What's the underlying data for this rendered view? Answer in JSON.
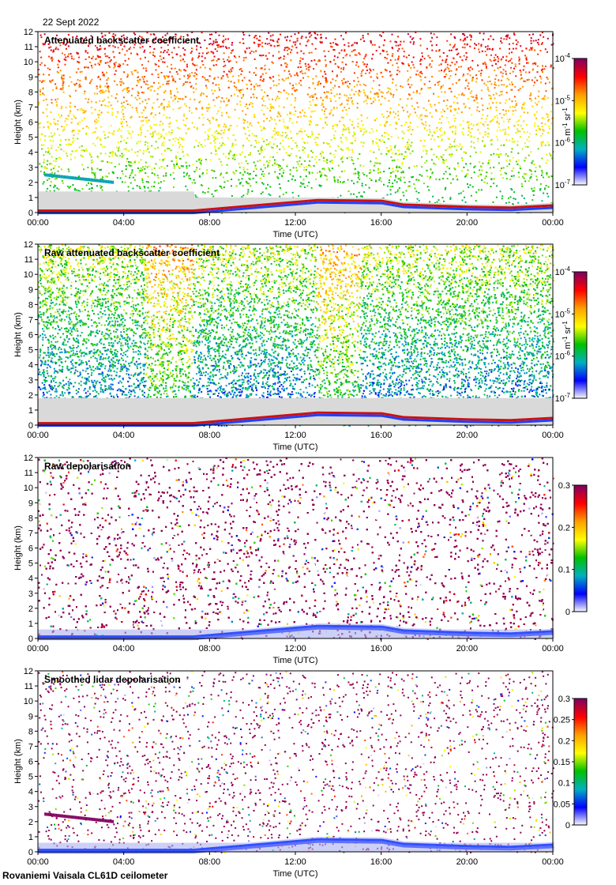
{
  "date": "22 Sept 2022",
  "footer": "Rovaniemi Vaisala CL61D ceilometer",
  "colors": {
    "background_low": "#d9d9d9",
    "scale": [
      "#ffffff",
      "#0000ff",
      "#00b0c0",
      "#00c000",
      "#ffff00",
      "#ffa000",
      "#ff0000",
      "#800060"
    ]
  },
  "chart_data": [
    {
      "type": "heatmap",
      "title": "Attenuated backscatter coefficient",
      "xlabel": "Time (UTC)",
      "ylabel": "Height (km)",
      "x_ticks": [
        "00:00",
        "04:00",
        "08:00",
        "12:00",
        "16:00",
        "20:00",
        "00:00"
      ],
      "xlim": [
        0,
        24
      ],
      "ylim": [
        0,
        12
      ],
      "y_ticks": [
        "0",
        "1",
        "2",
        "3",
        "4",
        "5",
        "6",
        "7",
        "8",
        "9",
        "10",
        "11",
        "12"
      ],
      "colorbar": {
        "scale": "log",
        "range": [
          1e-07,
          0.0001
        ],
        "unit_base": "m",
        "unit_exp": "-1",
        "unit_base2": "sr",
        "unit_exp2": "-1",
        "ticks": [
          {
            "base": "10",
            "exp": "-7",
            "value": 1e-07
          },
          {
            "base": "10",
            "exp": "-6",
            "value": 1e-06
          },
          {
            "base": "10",
            "exp": "-5",
            "value": 1e-05
          },
          {
            "base": "10",
            "exp": "-4",
            "value": 0.0001
          }
        ]
      },
      "features": {
        "low_cloud_base_km": [
          {
            "t": 0,
            "h": 0.1
          },
          {
            "t": 7.2,
            "h": 0.1
          },
          {
            "t": 13,
            "h": 0.8
          },
          {
            "t": 16,
            "h": 0.75
          },
          {
            "t": 17,
            "h": 0.5
          },
          {
            "t": 20,
            "h": 0.35
          },
          {
            "t": 22,
            "h": 0.3
          },
          {
            "t": 24,
            "h": 0.45
          }
        ],
        "elevated_layer_km": [
          {
            "t": 0.3,
            "h": 2.5
          },
          {
            "t": 3.5,
            "h": 2.0
          }
        ]
      }
    },
    {
      "type": "heatmap",
      "title": "Raw attenuated backscatter coefficient",
      "xlabel": "Time (UTC)",
      "ylabel": "Height (km)",
      "x_ticks": [
        "00:00",
        "04:00",
        "08:00",
        "12:00",
        "16:00",
        "20:00",
        "00:00"
      ],
      "xlim": [
        0,
        24
      ],
      "ylim": [
        0,
        12
      ],
      "y_ticks": [
        "0",
        "1",
        "2",
        "3",
        "4",
        "5",
        "6",
        "7",
        "8",
        "9",
        "10",
        "11",
        "12"
      ],
      "colorbar": {
        "scale": "log",
        "range": [
          1e-07,
          0.0001
        ],
        "unit_base": "m",
        "unit_exp": "-1",
        "unit_base2": "sr",
        "unit_exp2": "-1",
        "ticks": [
          {
            "base": "10",
            "exp": "-7",
            "value": 1e-07
          },
          {
            "base": "10",
            "exp": "-6",
            "value": 1e-06
          },
          {
            "base": "10",
            "exp": "-5",
            "value": 1e-05
          },
          {
            "base": "10",
            "exp": "-4",
            "value": 0.0001
          }
        ]
      }
    },
    {
      "type": "heatmap",
      "title": "Raw depolarisation",
      "xlabel": "Time (UTC)",
      "ylabel": "Height (km)",
      "x_ticks": [
        "00:00",
        "04:00",
        "08:00",
        "12:00",
        "16:00",
        "20:00",
        "00:00"
      ],
      "xlim": [
        0,
        24
      ],
      "ylim": [
        0,
        12
      ],
      "y_ticks": [
        "0",
        "1",
        "2",
        "3",
        "4",
        "5",
        "6",
        "7",
        "8",
        "9",
        "10",
        "11",
        "12"
      ],
      "colorbar": {
        "scale": "linear",
        "range": [
          0,
          0.3
        ],
        "ticks": [
          {
            "label": "0",
            "value": 0
          },
          {
            "label": "0.1",
            "value": 0.1
          },
          {
            "label": "0.2",
            "value": 0.2
          },
          {
            "label": "0.3",
            "value": 0.3
          }
        ]
      }
    },
    {
      "type": "heatmap",
      "title": "Smoothed lidar depolarisation",
      "xlabel": "Time (UTC)",
      "ylabel": "Height (km)",
      "x_ticks": [
        "00:00",
        "04:00",
        "08:00",
        "12:00",
        "16:00",
        "20:00",
        "00:00"
      ],
      "xlim": [
        0,
        24
      ],
      "ylim": [
        0,
        12
      ],
      "y_ticks": [
        "0",
        "1",
        "2",
        "3",
        "4",
        "5",
        "6",
        "7",
        "8",
        "9",
        "10",
        "11",
        "12"
      ],
      "colorbar": {
        "scale": "linear",
        "range": [
          0,
          0.3
        ],
        "ticks": [
          {
            "label": "0",
            "value": 0
          },
          {
            "label": "0.05",
            "value": 0.05
          },
          {
            "label": "0.1",
            "value": 0.1
          },
          {
            "label": "0.15",
            "value": 0.15
          },
          {
            "label": "0.2",
            "value": 0.2
          },
          {
            "label": "0.25",
            "value": 0.25
          },
          {
            "label": "0.3",
            "value": 0.3
          }
        ]
      }
    }
  ]
}
